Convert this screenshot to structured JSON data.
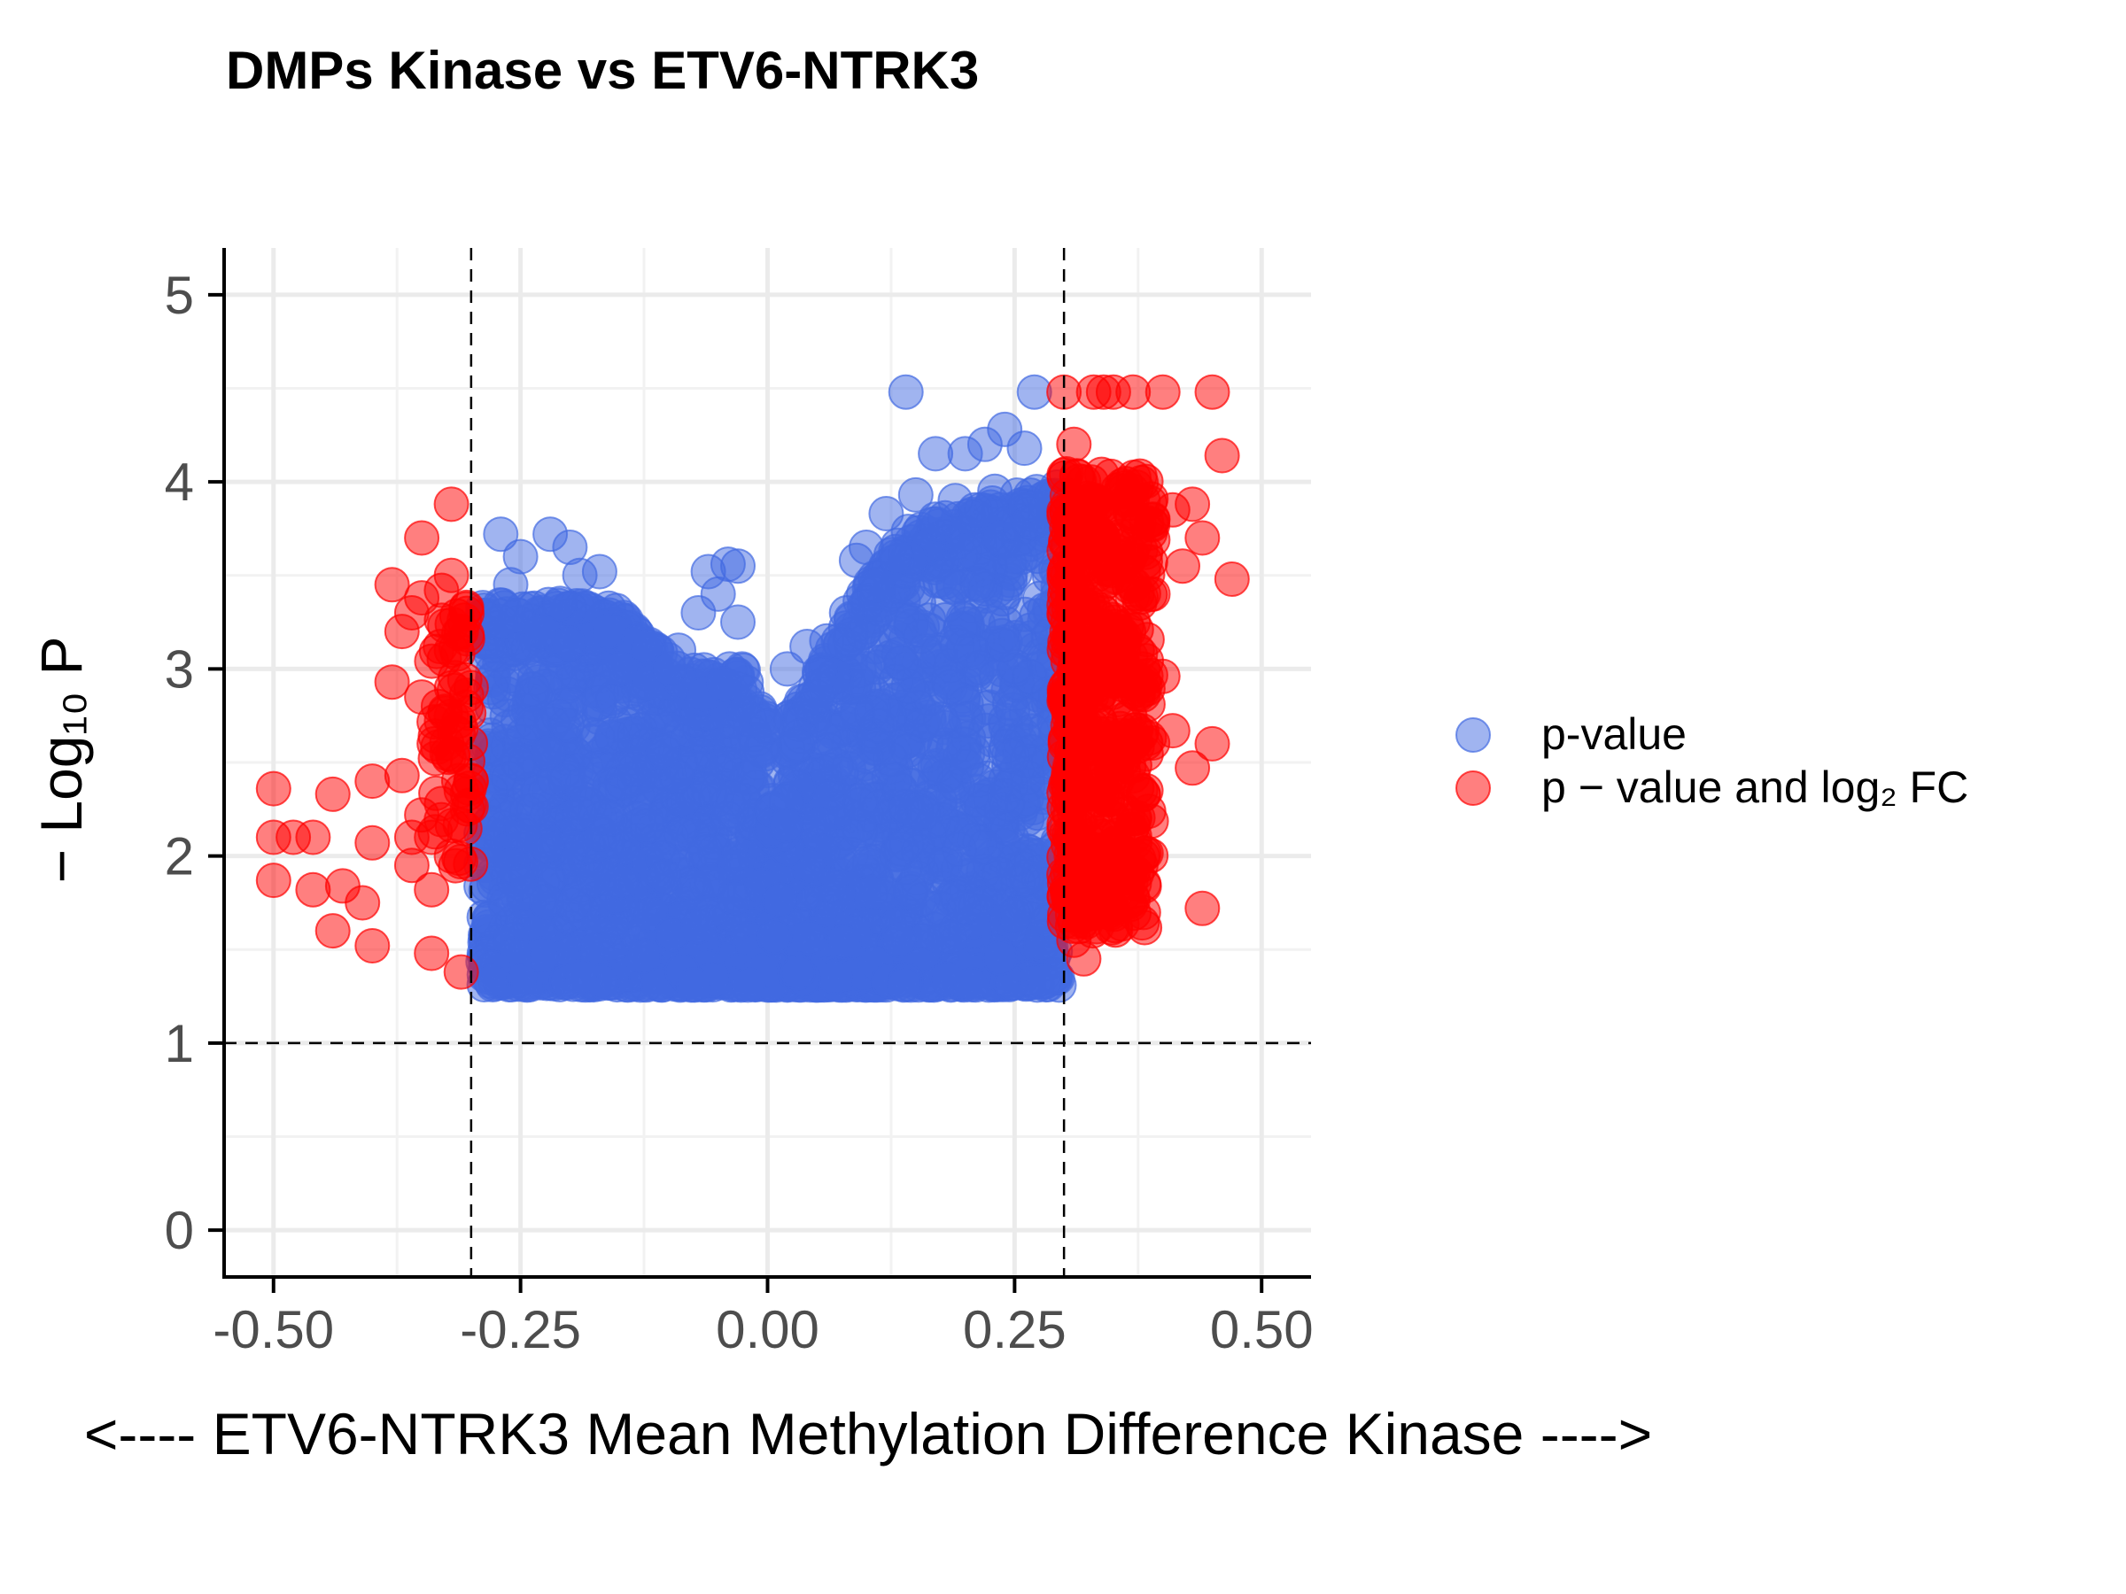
{
  "chart_data": {
    "type": "scatter",
    "title": "DMPs Kinase vs ETV6-NTRK3",
    "xlabel": "<---- ETV6-NTRK3   Mean Methylation Difference   Kinase ---->",
    "ylabel": "− Log₁₀ P",
    "xlim": [
      -0.55,
      0.55
    ],
    "ylim": [
      -0.25,
      5.25
    ],
    "x_ticks": [
      "-0.50",
      "-0.25",
      "0.00",
      "0.25",
      "0.50"
    ],
    "x_tick_values": [
      -0.5,
      -0.25,
      0.0,
      0.25,
      0.5
    ],
    "y_ticks": [
      "0",
      "1",
      "2",
      "3",
      "4",
      "5"
    ],
    "y_tick_values": [
      0,
      1,
      2,
      3,
      4,
      5
    ],
    "grid": true,
    "legend_position": "right",
    "thresholds": {
      "x": [
        -0.3,
        0.3
      ],
      "y": 1
    },
    "colors": {
      "pvalue": "#4169e1",
      "pvalue_fc": "#ff0000"
    },
    "series": [
      {
        "name": "p-value",
        "color": "#4169e1",
        "points": [
          [
            0.14,
            4.48
          ],
          [
            0.27,
            4.48
          ],
          [
            0.24,
            4.28
          ],
          [
            0.22,
            4.2
          ],
          [
            0.2,
            4.15
          ],
          [
            0.17,
            4.15
          ],
          [
            0.26,
            4.18
          ],
          [
            0.12,
            3.83
          ],
          [
            0.15,
            3.93
          ],
          [
            0.19,
            3.9
          ],
          [
            0.23,
            3.95
          ],
          [
            0.09,
            3.58
          ],
          [
            0.1,
            3.65
          ],
          [
            -0.27,
            3.72
          ],
          [
            -0.22,
            3.72
          ],
          [
            -0.2,
            3.65
          ],
          [
            -0.19,
            3.5
          ],
          [
            -0.17,
            3.52
          ],
          [
            -0.25,
            3.6
          ],
          [
            -0.26,
            3.45
          ],
          [
            -0.04,
            3.56
          ],
          [
            -0.06,
            3.52
          ],
          [
            -0.03,
            3.55
          ],
          [
            -0.05,
            3.4
          ],
          [
            -0.07,
            3.3
          ],
          [
            -0.03,
            3.25
          ],
          [
            -0.13,
            3.15
          ],
          [
            -0.12,
            3.12
          ],
          [
            -0.09,
            3.1
          ],
          [
            -0.1,
            3.0
          ],
          [
            0.02,
            3.0
          ],
          [
            0.04,
            3.12
          ],
          [
            0.06,
            3.15
          ],
          [
            0.05,
            2.85
          ],
          [
            0.03,
            2.6
          ],
          [
            0.08,
            3.3
          ],
          [
            0.11,
            3.45
          ],
          [
            0.13,
            3.6
          ],
          [
            0.17,
            3.8
          ],
          [
            0.21,
            3.85
          ],
          [
            -0.21,
            3.35
          ],
          [
            -0.23,
            3.2
          ],
          [
            -0.15,
            3.0
          ],
          [
            0.0,
            2.7
          ],
          [
            -0.01,
            2.5
          ],
          [
            -0.28,
            1.33
          ],
          [
            0.28,
            1.33
          ],
          [
            -0.02,
            1.31
          ],
          [
            0.25,
            3.6
          ],
          [
            -0.28,
            2.9
          ]
        ]
      },
      {
        "name": "p − value and log₂ FC",
        "color": "#ff0000",
        "points": [
          [
            -0.5,
            2.36
          ],
          [
            -0.5,
            2.1
          ],
          [
            -0.5,
            1.87
          ],
          [
            -0.48,
            2.1
          ],
          [
            -0.46,
            2.1
          ],
          [
            -0.46,
            1.82
          ],
          [
            -0.44,
            2.33
          ],
          [
            -0.44,
            1.6
          ],
          [
            -0.43,
            1.84
          ],
          [
            -0.41,
            1.75
          ],
          [
            -0.4,
            1.52
          ],
          [
            -0.4,
            2.07
          ],
          [
            -0.4,
            2.4
          ],
          [
            -0.38,
            3.45
          ],
          [
            -0.38,
            2.93
          ],
          [
            -0.37,
            3.2
          ],
          [
            -0.37,
            2.43
          ],
          [
            -0.36,
            2.1
          ],
          [
            -0.36,
            1.95
          ],
          [
            -0.35,
            3.38
          ],
          [
            -0.35,
            3.7
          ],
          [
            -0.35,
            2.22
          ],
          [
            -0.34,
            1.82
          ],
          [
            -0.34,
            1.48
          ],
          [
            -0.33,
            3.42
          ],
          [
            -0.33,
            3.26
          ],
          [
            -0.33,
            2.72
          ],
          [
            -0.33,
            2.28
          ],
          [
            -0.32,
            3.88
          ],
          [
            -0.32,
            3.5
          ],
          [
            -0.32,
            3.1
          ],
          [
            -0.32,
            2.0
          ],
          [
            -0.31,
            3.2
          ],
          [
            -0.31,
            2.35
          ],
          [
            -0.31,
            1.38
          ],
          [
            -0.3,
            2.9
          ],
          [
            -0.3,
            2.4
          ],
          [
            -0.35,
            2.85
          ],
          [
            -0.36,
            3.3
          ],
          [
            -0.34,
            2.1
          ],
          [
            0.3,
            4.48
          ],
          [
            0.33,
            4.48
          ],
          [
            0.34,
            4.48
          ],
          [
            0.35,
            4.48
          ],
          [
            0.37,
            4.48
          ],
          [
            0.4,
            4.48
          ],
          [
            0.45,
            4.48
          ],
          [
            0.31,
            4.2
          ],
          [
            0.46,
            4.14
          ],
          [
            0.32,
            4.0
          ],
          [
            0.36,
            3.95
          ],
          [
            0.38,
            3.9
          ],
          [
            0.39,
            3.8
          ],
          [
            0.41,
            3.85
          ],
          [
            0.43,
            3.88
          ],
          [
            0.44,
            3.7
          ],
          [
            0.47,
            3.48
          ],
          [
            0.32,
            3.5
          ],
          [
            0.34,
            3.3
          ],
          [
            0.36,
            3.1
          ],
          [
            0.38,
            3.0
          ],
          [
            0.4,
            2.96
          ],
          [
            0.41,
            2.67
          ],
          [
            0.45,
            2.6
          ],
          [
            0.43,
            2.47
          ],
          [
            0.37,
            2.6
          ],
          [
            0.38,
            2.33
          ],
          [
            0.35,
            2.2
          ],
          [
            0.36,
            1.97
          ],
          [
            0.33,
            1.82
          ],
          [
            0.31,
            1.55
          ],
          [
            0.32,
            1.45
          ],
          [
            0.44,
            1.72
          ],
          [
            0.3,
            1.9
          ],
          [
            0.35,
            2.6
          ],
          [
            0.39,
            3.4
          ],
          [
            0.42,
            3.55
          ],
          [
            0.34,
            3.7
          ],
          [
            0.33,
            2.9
          ],
          [
            0.37,
            3.25
          ]
        ]
      }
    ]
  }
}
